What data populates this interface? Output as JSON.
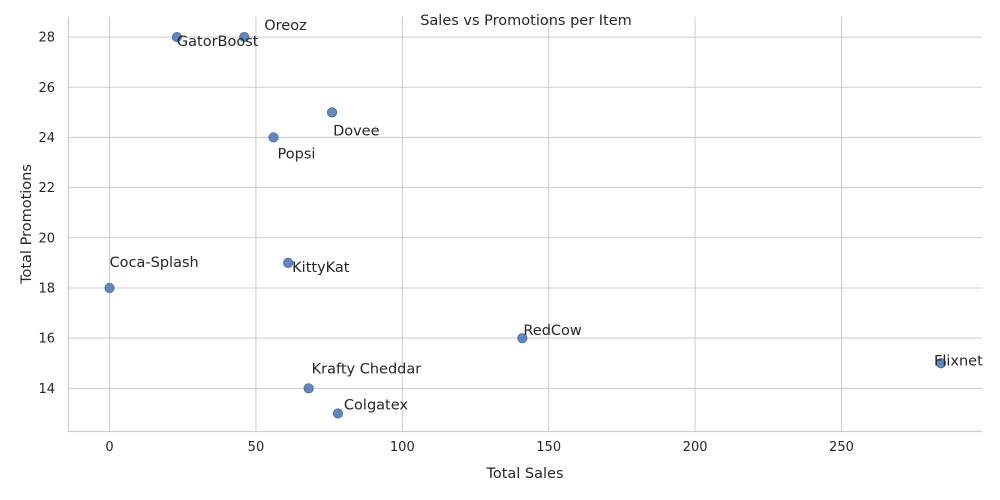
{
  "chart_data": {
    "type": "scatter",
    "title": "Sales vs Promotions per Item",
    "xlabel": "Total Sales",
    "ylabel": "Total Promotions",
    "xlim": [
      -14.2,
      298
    ],
    "ylim": [
      12.3,
      28.8
    ],
    "xticks": [
      0,
      50,
      100,
      150,
      200,
      250
    ],
    "yticks": [
      14,
      16,
      18,
      20,
      22,
      24,
      26,
      28
    ],
    "grid": true,
    "color": "#4c72b0",
    "points": [
      {
        "label": "Oreoz",
        "x": 46,
        "y": 28
      },
      {
        "label": "GatorBoost",
        "x": 23,
        "y": 28
      },
      {
        "label": "Dovee",
        "x": 76,
        "y": 25
      },
      {
        "label": "Popsi",
        "x": 56,
        "y": 24
      },
      {
        "label": "Coca-Splash",
        "x": 0,
        "y": 18
      },
      {
        "label": "KittyKat",
        "x": 61,
        "y": 19
      },
      {
        "label": "RedCow",
        "x": 141,
        "y": 16
      },
      {
        "label": "Flixnet",
        "x": 284,
        "y": 15
      },
      {
        "label": "Krafty Cheddar",
        "x": 68,
        "y": 14
      },
      {
        "label": "Colgatex",
        "x": 78,
        "y": 13
      }
    ]
  }
}
